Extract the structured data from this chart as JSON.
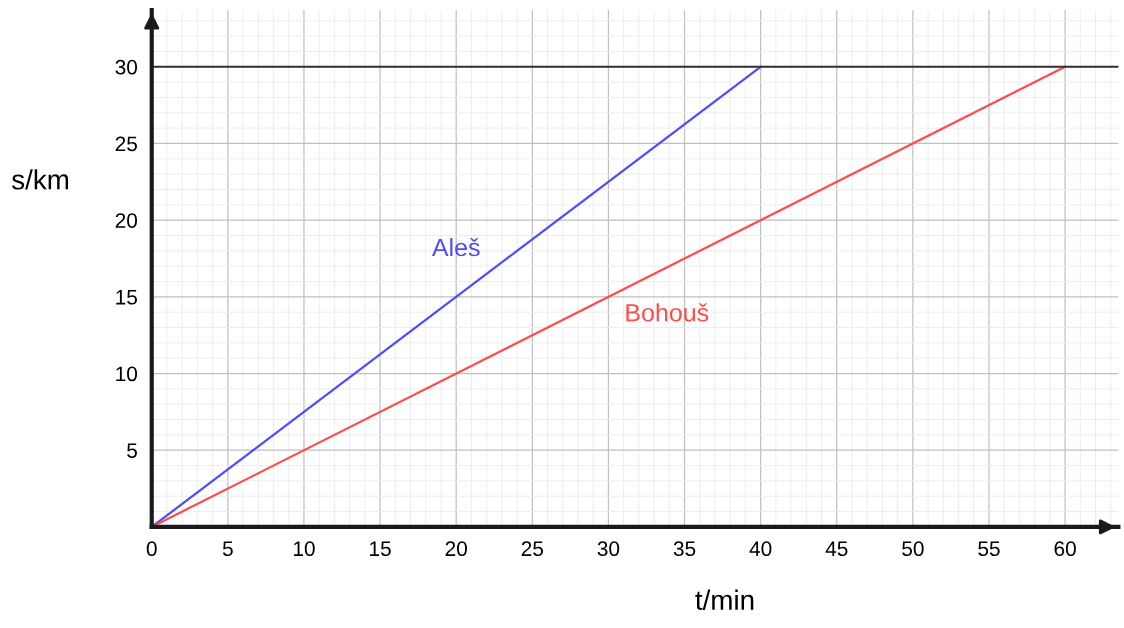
{
  "chart_data": {
    "type": "line",
    "xlabel": "t/min",
    "ylabel": "s/km",
    "series": [
      {
        "name": "Aleš",
        "color": "#4b4bff",
        "x": [
          0,
          40
        ],
        "values": [
          0,
          30
        ]
      },
      {
        "name": "Bohouš",
        "color": "#ff4b4b",
        "x": [
          0,
          60
        ],
        "values": [
          0,
          30
        ]
      }
    ],
    "xlim": [
      0,
      63.5
    ],
    "ylim": [
      0,
      33.7
    ],
    "xticks": [
      0,
      5,
      10,
      15,
      20,
      25,
      30,
      35,
      40,
      45,
      50,
      55,
      60
    ],
    "yticks": [
      5,
      10,
      15,
      20,
      25,
      30
    ],
    "ref_lines": [
      {
        "axis": "y",
        "value": 30,
        "color": "#333333"
      }
    ],
    "grid": true,
    "legend": false,
    "marker": "none",
    "line_style": "solid"
  }
}
